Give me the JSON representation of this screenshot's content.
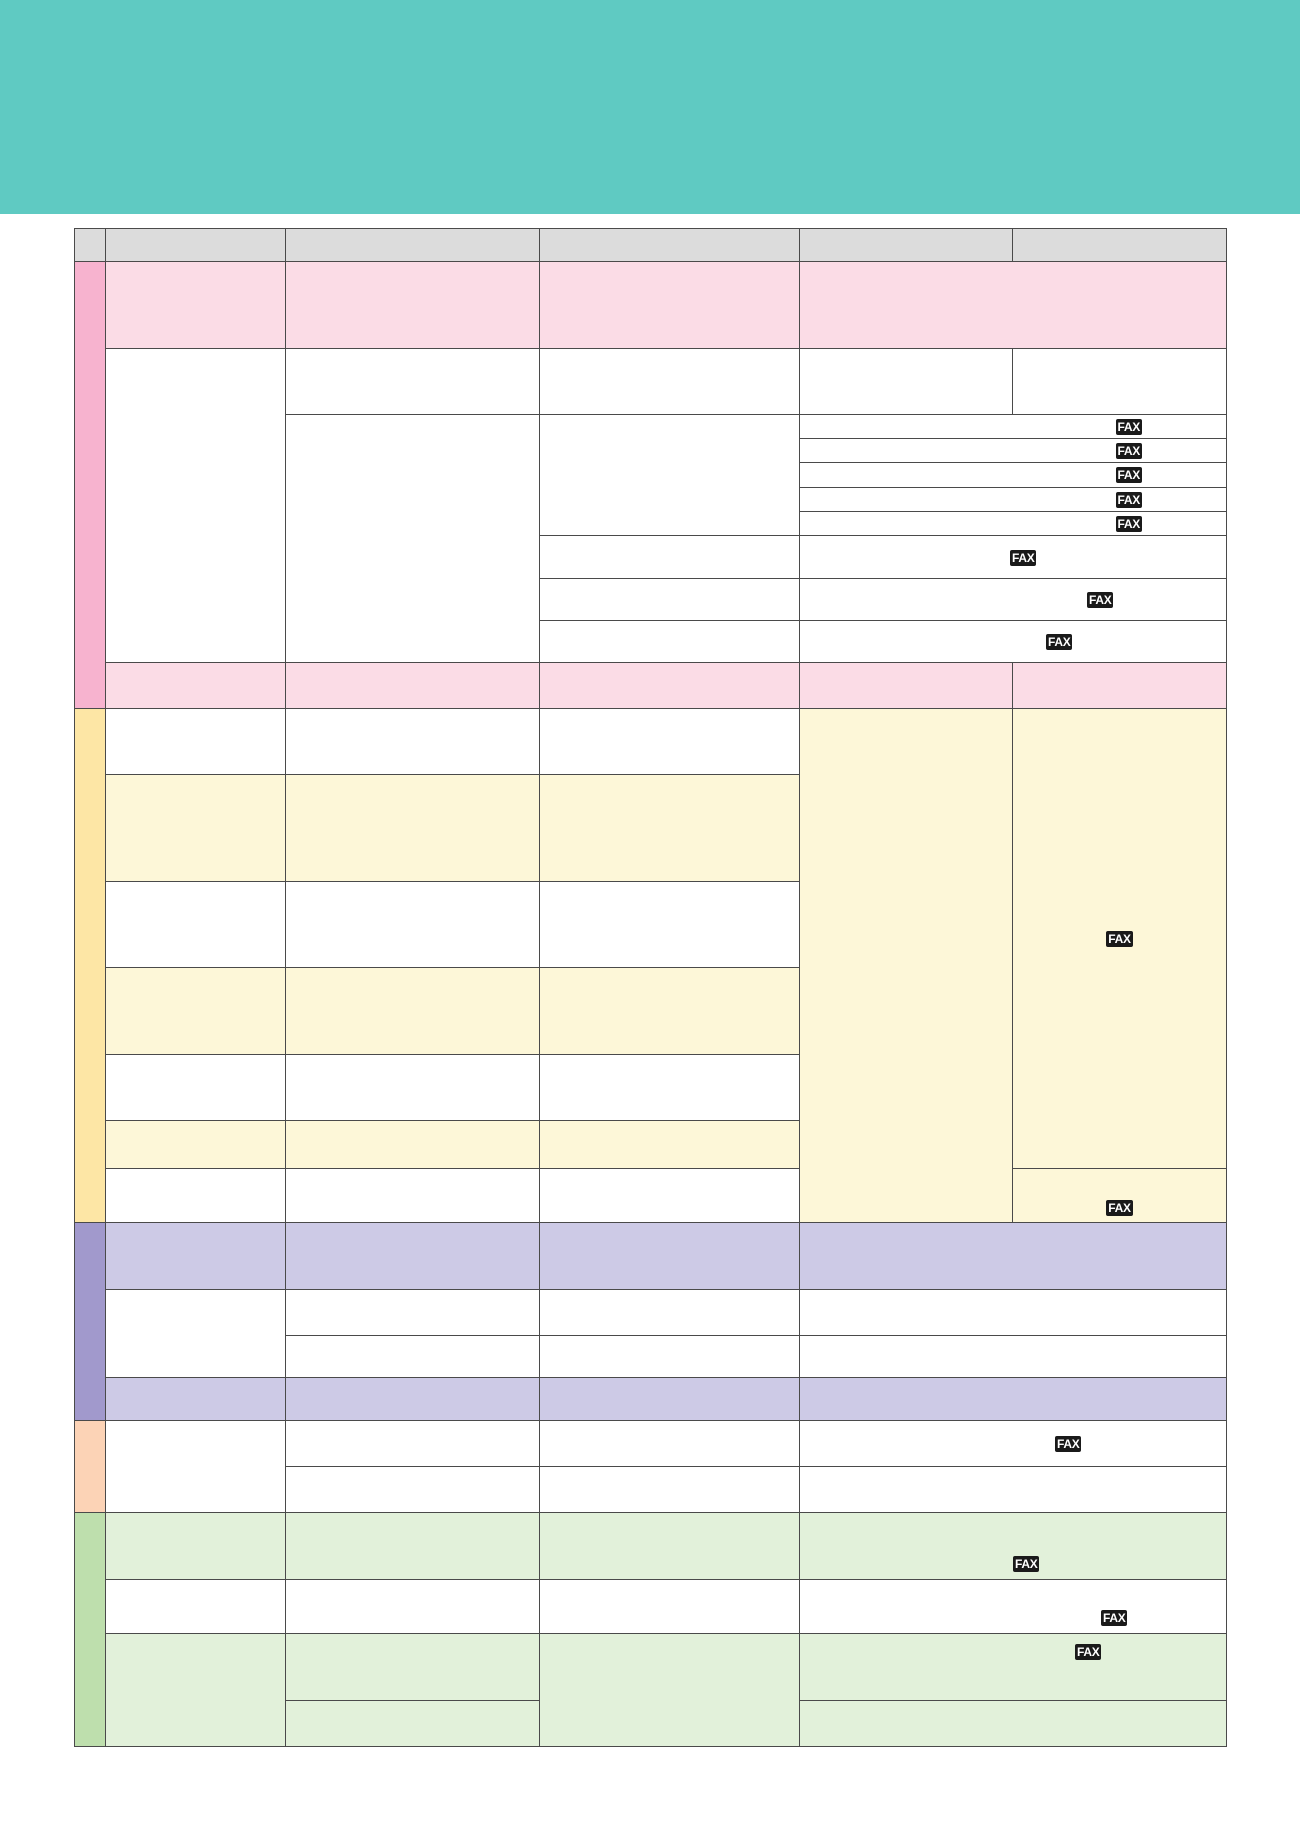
{
  "colors": {
    "banner": "#5fcac2",
    "header": "#dcdcdc",
    "pink": "#fbdce6",
    "pink_tab": "#f7b3cf",
    "yellow": "#fdf7d8",
    "yellow_tab": "#fde6a5",
    "purple": "#cdcae6",
    "purple_tab": "#a199cc",
    "peach_tab": "#fcd3b6",
    "green": "#e2f1da",
    "green_tab": "#bedfad",
    "white": "#ffffff"
  },
  "badge": {
    "label": "FAX",
    "icon": "fax-badge-icon"
  }
}
